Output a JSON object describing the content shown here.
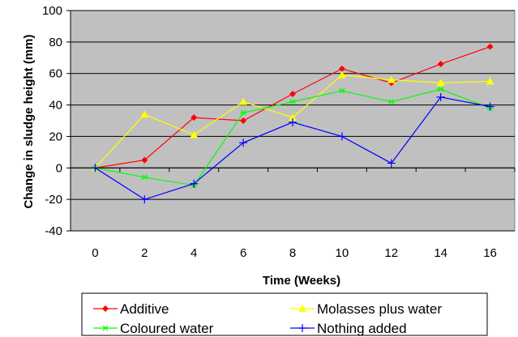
{
  "chart_data": {
    "type": "line",
    "title": "",
    "xlabel": "Time (Weeks)",
    "ylabel": "Change in sludge height (mm)",
    "x": [
      0,
      2,
      4,
      6,
      8,
      10,
      12,
      14,
      16
    ],
    "xlim": [
      0,
      16
    ],
    "ylim": [
      -40,
      100
    ],
    "y_ticks": [
      -40,
      -20,
      0,
      20,
      40,
      60,
      80,
      100
    ],
    "grid": "horizontal",
    "legend_position": "bottom",
    "plot_background": "#c0c0c0",
    "series": [
      {
        "name": "Additive",
        "color": "#ff0000",
        "marker": "diamond",
        "values": [
          0,
          5,
          32,
          30,
          47,
          63,
          54,
          66,
          77
        ]
      },
      {
        "name": "Molasses plus water",
        "color": "#ffff00",
        "marker": "triangle",
        "values": [
          0,
          34,
          21,
          42,
          32,
          59,
          56,
          54,
          55
        ]
      },
      {
        "name": "Coloured water",
        "color": "#00ff00",
        "marker": "asterisk",
        "values": [
          0,
          -6,
          -11,
          35,
          42,
          49,
          42,
          50,
          38
        ]
      },
      {
        "name": "Nothing added",
        "color": "#0000ff",
        "marker": "plus",
        "values": [
          0,
          -20,
          -10,
          16,
          29,
          20,
          3,
          45,
          39
        ]
      }
    ]
  }
}
